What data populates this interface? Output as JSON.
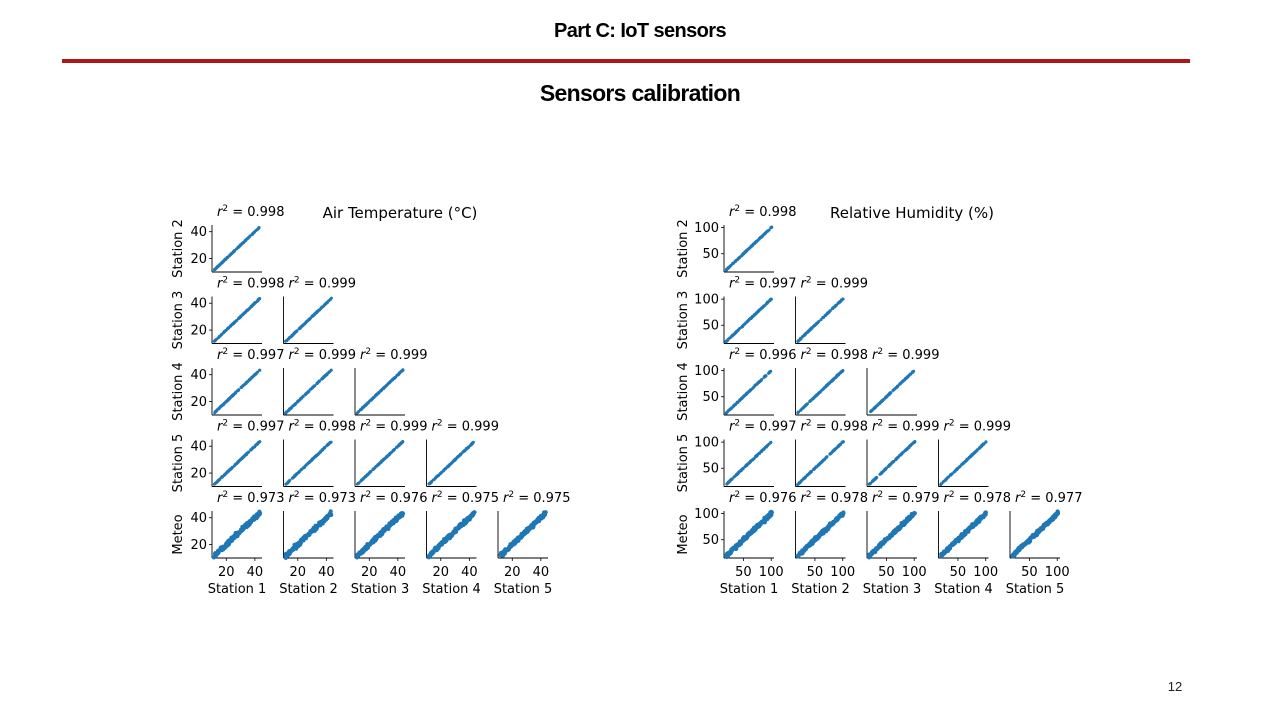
{
  "slide": {
    "header": "Part C: IoT sensors",
    "title": "Sensors calibration",
    "page_number": "12"
  },
  "colors": {
    "rule": "#b01616",
    "points": "#1f77b4"
  },
  "chart_data": [
    {
      "type": "scatter",
      "title": "Air Temperature (°C)",
      "layout": "lower-triangular pair matrix",
      "row_labels": [
        "Station 2",
        "Station 3",
        "Station 4",
        "Station 5",
        "Meteo"
      ],
      "col_labels": [
        "Station 1",
        "Station 2",
        "Station 3",
        "Station 4",
        "Station 5"
      ],
      "axis_range": [
        10,
        45
      ],
      "xticks": [
        20,
        40
      ],
      "yticks": [
        20,
        40
      ],
      "r2": [
        [
          0.998
        ],
        [
          0.998,
          0.999
        ],
        [
          0.997,
          0.999,
          0.999
        ],
        [
          0.997,
          0.998,
          0.999,
          0.999
        ],
        [
          0.973,
          0.973,
          0.976,
          0.975,
          0.975
        ]
      ]
    },
    {
      "type": "scatter",
      "title": "Relative Humidity (%)",
      "layout": "lower-triangular pair matrix",
      "row_labels": [
        "Station 2",
        "Station 3",
        "Station 4",
        "Station 5",
        "Meteo"
      ],
      "col_labels": [
        "Station 1",
        "Station 2",
        "Station 3",
        "Station 4",
        "Station 5"
      ],
      "axis_range": [
        15,
        105
      ],
      "xticks": [
        50,
        100
      ],
      "yticks": [
        50,
        100
      ],
      "r2": [
        [
          0.998
        ],
        [
          0.997,
          0.999
        ],
        [
          0.996,
          0.998,
          0.999
        ],
        [
          0.997,
          0.998,
          0.999,
          0.999
        ],
        [
          0.976,
          0.978,
          0.979,
          0.978,
          0.977
        ]
      ]
    }
  ]
}
